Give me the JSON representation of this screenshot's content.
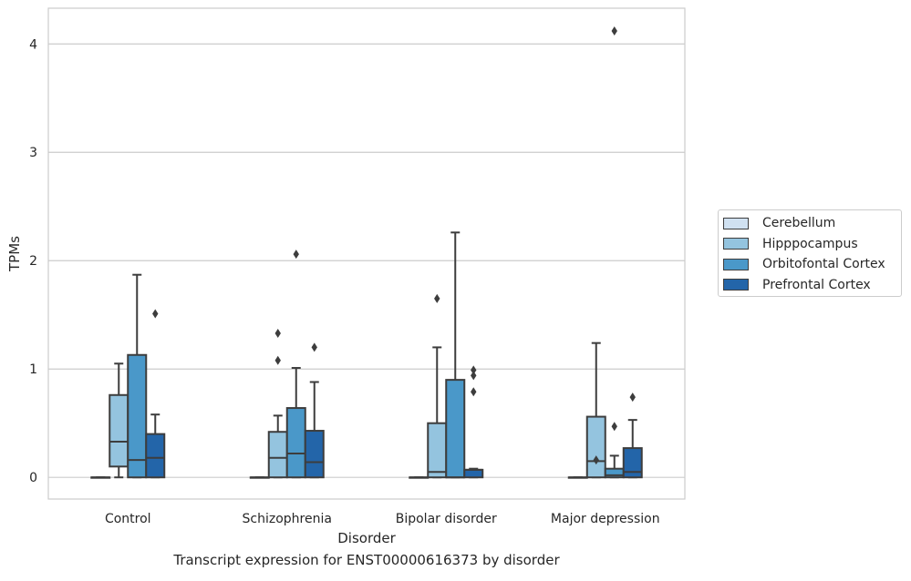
{
  "caption": "Transcript expression for ENST00000616373 by disorder",
  "chart_data": {
    "type": "box",
    "xlabel": "Disorder",
    "ylabel": "TPMs",
    "ylim": [
      -0.2,
      4.33
    ],
    "yticks": [
      0,
      1,
      2,
      3,
      4
    ],
    "grid": "horizontal",
    "legend_position": "right",
    "categories": [
      "Control",
      "Schizophrenia",
      "Bipolar disorder",
      "Major depression"
    ],
    "series": [
      {
        "name": "Cerebellum",
        "color": "#d0e1f1",
        "boxes": [
          {
            "whislo": 0,
            "q1": 0,
            "med": 0,
            "q3": 0,
            "whishi": 0,
            "fliers": []
          },
          {
            "whislo": 0,
            "q1": 0,
            "med": 0,
            "q3": 0,
            "whishi": 0,
            "fliers": []
          },
          {
            "whislo": 0,
            "q1": 0,
            "med": 0,
            "q3": 0,
            "whishi": 0,
            "fliers": []
          },
          {
            "whislo": 0,
            "q1": 0,
            "med": 0,
            "q3": 0,
            "whishi": 0,
            "fliers": []
          }
        ]
      },
      {
        "name": "Hipppocampus",
        "color": "#94c4df",
        "boxes": [
          {
            "whislo": 0,
            "q1": 0.1,
            "med": 0.33,
            "q3": 0.76,
            "whishi": 1.05,
            "fliers": []
          },
          {
            "whislo": 0,
            "q1": 0,
            "med": 0.18,
            "q3": 0.42,
            "whishi": 0.57,
            "fliers": [
              1.08,
              1.33
            ]
          },
          {
            "whislo": 0,
            "q1": 0,
            "med": 0.05,
            "q3": 0.5,
            "whishi": 1.2,
            "fliers": [
              1.65
            ]
          },
          {
            "whislo": 0,
            "q1": 0,
            "med": 0.15,
            "q3": 0.56,
            "whishi": 1.24,
            "fliers": [
              0.16
            ]
          }
        ]
      },
      {
        "name": "Orbitofontal Cortex",
        "color": "#4a98c9",
        "boxes": [
          {
            "whislo": 0,
            "q1": 0,
            "med": 0.16,
            "q3": 1.13,
            "whishi": 1.87,
            "fliers": []
          },
          {
            "whislo": 0,
            "q1": 0,
            "med": 0.22,
            "q3": 0.64,
            "whishi": 1.01,
            "fliers": [
              2.06
            ]
          },
          {
            "whislo": 0,
            "q1": 0,
            "med": 0,
            "q3": 0.9,
            "whishi": 2.26,
            "fliers": []
          },
          {
            "whislo": 0,
            "q1": 0,
            "med": 0.02,
            "q3": 0.08,
            "whishi": 0.2,
            "fliers": [
              0.47,
              4.12
            ]
          }
        ]
      },
      {
        "name": "Prefrontal Cortex",
        "color": "#2365a9",
        "boxes": [
          {
            "whislo": 0,
            "q1": 0,
            "med": 0.18,
            "q3": 0.4,
            "whishi": 0.58,
            "fliers": [
              1.51
            ]
          },
          {
            "whislo": 0,
            "q1": 0,
            "med": 0.14,
            "q3": 0.43,
            "whishi": 0.88,
            "fliers": [
              1.2
            ]
          },
          {
            "whislo": 0,
            "q1": 0,
            "med": 0.07,
            "q3": 0.07,
            "whishi": 0.08,
            "fliers": [
              0.79,
              0.94,
              0.99
            ]
          },
          {
            "whislo": 0,
            "q1": 0,
            "med": 0.05,
            "q3": 0.27,
            "whishi": 0.53,
            "fliers": [
              0.74
            ]
          }
        ]
      }
    ]
  }
}
